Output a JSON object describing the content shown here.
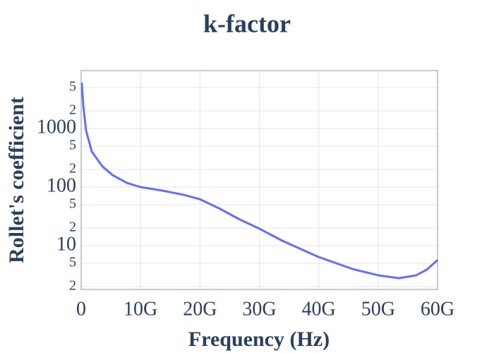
{
  "chart_data": {
    "type": "line",
    "title": "k-factor",
    "xlabel": "Frequency (Hz)",
    "ylabel": "Rollet's coefficient",
    "x": [
      100000000,
      360000000,
      830000000,
      1800000000,
      3600000000,
      5300000000,
      7700000000,
      10000000000,
      13700000000,
      17200000000,
      20000000000,
      23200000000,
      26700000000,
      30000000000,
      33900000000,
      40000000000,
      45700000000,
      50000000000,
      53500000000,
      56400000000,
      58200000000,
      60000000000
    ],
    "values": [
      6070,
      2430,
      920,
      400,
      224,
      160,
      118,
      100,
      87,
      74,
      62,
      43.5,
      28,
      19.5,
      12.1,
      6.4,
      4.0,
      3.12,
      2.79,
      3.12,
      3.9,
      5.7
    ],
    "color": "#636efa",
    "xlim": [
      0,
      60000000000
    ],
    "xticks": [
      0,
      {
        "value": 10000000000,
        "label": "10G"
      },
      {
        "value": 20000000000,
        "label": "20G"
      },
      {
        "value": 30000000000,
        "label": "30G"
      },
      {
        "value": 40000000000,
        "label": "40G"
      },
      {
        "value": 50000000000,
        "label": "50G"
      },
      {
        "value": 60000000000,
        "label": "60G"
      }
    ],
    "ylim": [
      1.79,
      9730
    ],
    "yscale": "log",
    "yticks": [
      {
        "value": 2,
        "label": "2"
      },
      {
        "value": 5,
        "label": "5"
      },
      10,
      {
        "value": 20,
        "label": "2"
      },
      {
        "value": 50,
        "label": "5"
      },
      100,
      {
        "value": 200,
        "label": "2"
      },
      {
        "value": 500,
        "label": "5"
      },
      1000,
      {
        "value": 2000,
        "label": "2"
      },
      {
        "value": 5000,
        "label": "5"
      }
    ],
    "grid": true
  }
}
